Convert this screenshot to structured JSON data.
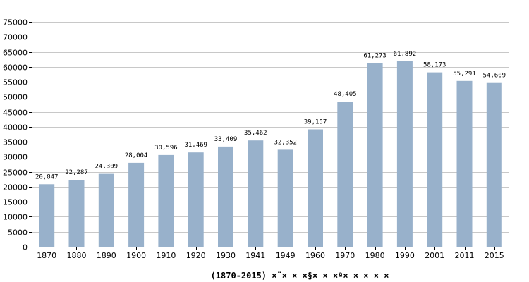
{
  "colors": {
    "bar": "#98b1cb",
    "grid": "#c8c8c8",
    "axis": "#000000",
    "background": "#ffffff"
  },
  "chart_data": {
    "type": "bar",
    "categories": [
      "1870",
      "1880",
      "1890",
      "1900",
      "1910",
      "1920",
      "1930",
      "1941",
      "1949",
      "1960",
      "1970",
      "1980",
      "1990",
      "2001",
      "2011",
      "2015"
    ],
    "series": [
      {
        "values": [
          20847,
          22287,
          24309,
          28004,
          30596,
          31469,
          33409,
          35462,
          32352,
          39157,
          48405,
          61273,
          61892,
          58173,
          55291,
          54609
        ]
      }
    ],
    "data_labels": [
      "20,847",
      "22,287",
      "24,309",
      "28,004",
      "30,596",
      "31,469",
      "33,409",
      "35,462",
      "32,352",
      "39,157",
      "48,405",
      "61,273",
      "61,892",
      "58,173",
      "55,291",
      "54,609"
    ],
    "y_ticks": [
      "0",
      "5000",
      "10000",
      "15000",
      "20000",
      "25000",
      "30000",
      "35000",
      "40000",
      "45000",
      "50000",
      "55000",
      "60000",
      "65000",
      "70000",
      "75000"
    ],
    "ylim": [
      0,
      75000
    ],
    "grid": true,
    "legend": "none",
    "caption": "(1870-2015) ×¨× ×  ×§× × ×ª× × × × ×",
    "title": "",
    "xlabel": "",
    "ylabel": ""
  }
}
